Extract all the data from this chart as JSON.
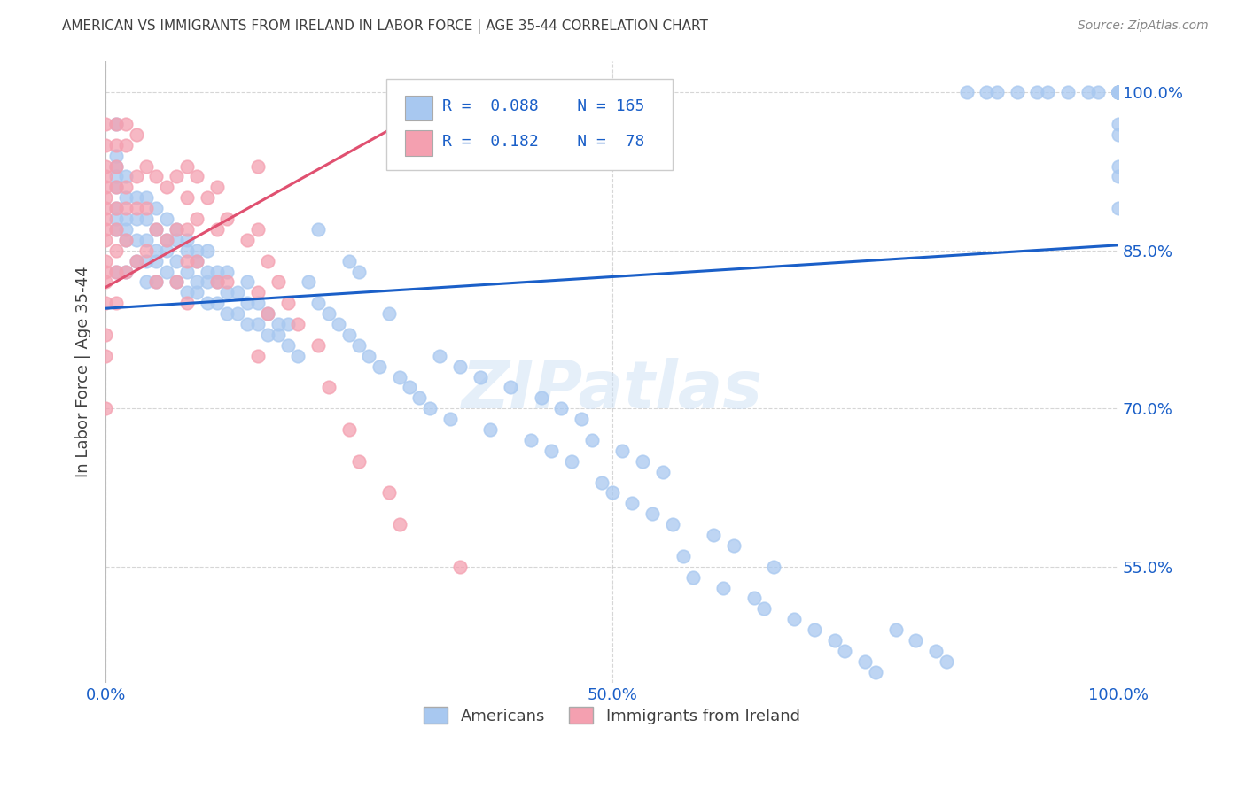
{
  "title": "AMERICAN VS IMMIGRANTS FROM IRELAND IN LABOR FORCE | AGE 35-44 CORRELATION CHART",
  "source": "Source: ZipAtlas.com",
  "ylabel": "In Labor Force | Age 35-44",
  "xlim": [
    0.0,
    1.0
  ],
  "ylim": [
    0.44,
    1.03
  ],
  "y_ticks": [
    0.55,
    0.7,
    0.85,
    1.0
  ],
  "y_tick_labels": [
    "55.0%",
    "70.0%",
    "85.0%",
    "100.0%"
  ],
  "blue_R": 0.088,
  "blue_N": 165,
  "pink_R": 0.182,
  "pink_N": 78,
  "blue_color": "#a8c8f0",
  "pink_color": "#f4a0b0",
  "blue_line_color": "#1a5fc8",
  "pink_line_color": "#e05070",
  "blue_trendline_x": [
    0.0,
    1.0
  ],
  "blue_trendline_y": [
    0.795,
    0.855
  ],
  "pink_trendline_x": [
    0.0,
    0.3
  ],
  "pink_trendline_y": [
    0.815,
    0.975
  ],
  "watermark": "ZIPatlas",
  "legend_label_blue": "Americans",
  "legend_label_pink": "Immigrants from Ireland",
  "background_color": "#ffffff",
  "grid_color": "#cccccc",
  "title_color": "#404040",
  "axis_label_color": "#404040",
  "tick_label_color": "#1a5fc8",
  "blue_scatter_x": [
    0.01,
    0.01,
    0.01,
    0.01,
    0.01,
    0.01,
    0.01,
    0.01,
    0.01,
    0.02,
    0.02,
    0.02,
    0.02,
    0.02,
    0.02,
    0.03,
    0.03,
    0.03,
    0.03,
    0.04,
    0.04,
    0.04,
    0.04,
    0.04,
    0.05,
    0.05,
    0.05,
    0.05,
    0.05,
    0.06,
    0.06,
    0.06,
    0.06,
    0.07,
    0.07,
    0.07,
    0.07,
    0.08,
    0.08,
    0.08,
    0.08,
    0.09,
    0.09,
    0.09,
    0.09,
    0.1,
    0.1,
    0.1,
    0.1,
    0.11,
    0.11,
    0.11,
    0.12,
    0.12,
    0.12,
    0.13,
    0.13,
    0.14,
    0.14,
    0.14,
    0.15,
    0.15,
    0.16,
    0.16,
    0.17,
    0.17,
    0.18,
    0.18,
    0.19,
    0.2,
    0.21,
    0.21,
    0.22,
    0.23,
    0.24,
    0.24,
    0.25,
    0.25,
    0.26,
    0.27,
    0.28,
    0.29,
    0.3,
    0.31,
    0.32,
    0.33,
    0.34,
    0.35,
    0.37,
    0.38,
    0.4,
    0.42,
    0.43,
    0.44,
    0.45,
    0.46,
    0.47,
    0.48,
    0.49,
    0.5,
    0.51,
    0.52,
    0.53,
    0.54,
    0.55,
    0.56,
    0.57,
    0.58,
    0.6,
    0.61,
    0.62,
    0.64,
    0.65,
    0.66,
    0.68,
    0.7,
    0.72,
    0.73,
    0.75,
    0.76,
    0.78,
    0.8,
    0.82,
    0.83,
    0.85,
    0.87,
    0.88,
    0.9,
    0.92,
    0.93,
    0.95,
    0.97,
    0.98,
    1.0,
    1.0,
    1.0,
    1.0,
    1.0,
    1.0,
    1.0,
    1.0,
    1.0,
    1.0,
    1.0,
    1.0,
    1.0,
    1.0,
    1.0,
    1.0,
    1.0,
    1.0,
    1.0,
    1.0,
    1.0,
    1.0,
    1.0,
    1.0,
    1.0
  ],
  "blue_scatter_y": [
    0.83,
    0.87,
    0.88,
    0.89,
    0.91,
    0.92,
    0.93,
    0.94,
    0.97,
    0.83,
    0.86,
    0.87,
    0.88,
    0.9,
    0.92,
    0.84,
    0.86,
    0.88,
    0.9,
    0.82,
    0.84,
    0.86,
    0.88,
    0.9,
    0.82,
    0.84,
    0.85,
    0.87,
    0.89,
    0.83,
    0.85,
    0.86,
    0.88,
    0.82,
    0.84,
    0.86,
    0.87,
    0.81,
    0.83,
    0.85,
    0.86,
    0.81,
    0.82,
    0.84,
    0.85,
    0.8,
    0.82,
    0.83,
    0.85,
    0.8,
    0.82,
    0.83,
    0.79,
    0.81,
    0.83,
    0.79,
    0.81,
    0.78,
    0.8,
    0.82,
    0.78,
    0.8,
    0.77,
    0.79,
    0.77,
    0.78,
    0.76,
    0.78,
    0.75,
    0.82,
    0.8,
    0.87,
    0.79,
    0.78,
    0.77,
    0.84,
    0.76,
    0.83,
    0.75,
    0.74,
    0.79,
    0.73,
    0.72,
    0.71,
    0.7,
    0.75,
    0.69,
    0.74,
    0.73,
    0.68,
    0.72,
    0.67,
    0.71,
    0.66,
    0.7,
    0.65,
    0.69,
    0.67,
    0.63,
    0.62,
    0.66,
    0.61,
    0.65,
    0.6,
    0.64,
    0.59,
    0.56,
    0.54,
    0.58,
    0.53,
    0.57,
    0.52,
    0.51,
    0.55,
    0.5,
    0.49,
    0.48,
    0.47,
    0.46,
    0.45,
    0.49,
    0.48,
    0.47,
    0.46,
    1.0,
    1.0,
    1.0,
    1.0,
    1.0,
    1.0,
    1.0,
    1.0,
    1.0,
    1.0,
    0.97,
    1.0,
    1.0,
    1.0,
    1.0,
    1.0,
    1.0,
    1.0,
    0.93,
    1.0,
    1.0,
    1.0,
    0.92,
    0.96,
    0.89
  ],
  "pink_scatter_x": [
    0.0,
    0.0,
    0.0,
    0.0,
    0.0,
    0.0,
    0.0,
    0.0,
    0.0,
    0.0,
    0.0,
    0.0,
    0.0,
    0.0,
    0.0,
    0.0,
    0.0,
    0.01,
    0.01,
    0.01,
    0.01,
    0.01,
    0.01,
    0.01,
    0.01,
    0.01,
    0.02,
    0.02,
    0.02,
    0.02,
    0.02,
    0.02,
    0.03,
    0.03,
    0.03,
    0.03,
    0.04,
    0.04,
    0.04,
    0.05,
    0.05,
    0.05,
    0.06,
    0.06,
    0.07,
    0.07,
    0.07,
    0.08,
    0.08,
    0.08,
    0.08,
    0.08,
    0.09,
    0.09,
    0.09,
    0.1,
    0.11,
    0.11,
    0.11,
    0.12,
    0.12,
    0.14,
    0.15,
    0.15,
    0.15,
    0.15,
    0.16,
    0.16,
    0.17,
    0.18,
    0.19,
    0.21,
    0.22,
    0.24,
    0.25,
    0.28,
    0.29,
    0.35
  ],
  "pink_scatter_y": [
    0.97,
    0.95,
    0.93,
    0.92,
    0.91,
    0.9,
    0.89,
    0.88,
    0.87,
    0.86,
    0.84,
    0.83,
    0.82,
    0.8,
    0.77,
    0.75,
    0.7,
    0.97,
    0.95,
    0.93,
    0.91,
    0.89,
    0.87,
    0.85,
    0.83,
    0.8,
    0.97,
    0.95,
    0.91,
    0.89,
    0.86,
    0.83,
    0.96,
    0.92,
    0.89,
    0.84,
    0.93,
    0.89,
    0.85,
    0.92,
    0.87,
    0.82,
    0.91,
    0.86,
    0.92,
    0.87,
    0.82,
    0.93,
    0.9,
    0.87,
    0.84,
    0.8,
    0.92,
    0.88,
    0.84,
    0.9,
    0.91,
    0.87,
    0.82,
    0.88,
    0.82,
    0.86,
    0.93,
    0.87,
    0.81,
    0.75,
    0.84,
    0.79,
    0.82,
    0.8,
    0.78,
    0.76,
    0.72,
    0.68,
    0.65,
    0.62,
    0.59,
    0.55
  ]
}
